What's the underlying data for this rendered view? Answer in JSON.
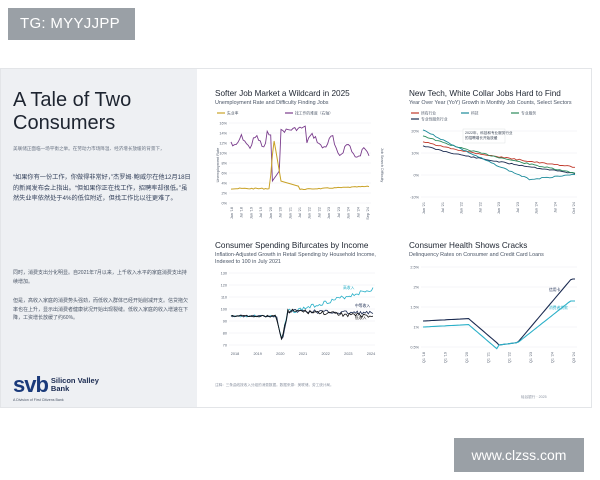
{
  "tag": "TG: MYYJJPP",
  "watermark": "www.clzss.com",
  "slide": {
    "title": "A Tale of Two Consumers",
    "intro": "美联储正面临一场平衡之举。在劳动力市场降温、经济增长放缓的背景下，",
    "quote": "“如果你有一份工作，你做得非常好，”杰罗姆·鲍威尔在他12月18日的新闻发布会上指出。“但如果你正在找工作，招聘率却很低。”虽然失业率依然处于4%的低位附近，但找工作比以往更难了。",
    "body1": "同时，消费支出分化明显。自2021年7月以来，上千收入水平的家庭消费支出持续增加。",
    "body2": "但是，高收入家庭的消费势头强劲，而低收入群体已经开始削减开支。信贷拖欠率也在上升，显示出消费者健康状况开始出现裂缝。低收入家庭的收入增速在下降，工资增长放缓了约60%。",
    "logo_mark": "svb",
    "logo_line1": "Silicon Valley",
    "logo_line2": "Bank",
    "logo_sub": "A Division of First Citizens Bank",
    "footer_left": "注释：三条曲线按收入分组的消费数据。数据来源：美联储，劳工统计局。",
    "footer_right": "硅谷银行 · 2025"
  },
  "charts": {
    "c1": {
      "title": "Softer Job Market a Wildcard in 2025",
      "subtitle": "Unemployment Rate and Difficulty Finding Jobs",
      "legend": [
        "失业率",
        "找工作的难度（右轴）"
      ],
      "ylabel_left": "Unemployment Rate",
      "ylabel_right": "Job Search Difficulty",
      "yticks": [
        "16%",
        "14%",
        "12%",
        "10%",
        "8%",
        "6%",
        "4%",
        "2%",
        "0%"
      ],
      "xticks": [
        "Jan '18",
        "Jul '18",
        "Jan '19",
        "Jul '19",
        "Jan '20",
        "Jul '20",
        "Jan '21",
        "Jul '21",
        "Jan '22",
        "Jul '22",
        "Jan '23",
        "Jul '23",
        "Jan '24",
        "Jul '24",
        "Sep '24"
      ],
      "colors": {
        "unemployment": "#c9a227",
        "difficulty": "#7a3c8c"
      }
    },
    "c2": {
      "title": "New Tech, White Collar Jobs Hard to Find",
      "subtitle": "Year Over Year (YoY) Growth in Monthly Job Counts, Select Sectors",
      "legend": [
        "所有行业",
        "科技",
        "专业服务",
        "专业性服务行业"
      ],
      "annotation": "2022年，科技和专业服务行业的招聘增长开始放缓",
      "yticks": [
        "20%",
        "10%",
        "0%",
        "-10%"
      ],
      "xticks": [
        "Jan '21",
        "Jul '21",
        "Jan '22",
        "Jul '22",
        "Jan '23",
        "Jul '23",
        "Jan '24",
        "Jul '24",
        "Oct '24"
      ],
      "colors": {
        "all": "#c0392b",
        "tech": "#1a8a9a",
        "prof": "#2a8a5a",
        "other": "#1a2a50"
      }
    },
    "c3": {
      "title": "Consumer Spending Bifurcates by Income",
      "subtitle": "Inflation-Adjusted Growth in Retail Spending by Household Income,",
      "subtitle2": "Indexed to 100 in July 2021",
      "legend": [
        "高收入",
        "中等收入",
        "低收入"
      ],
      "yticks": [
        "130",
        "120",
        "110",
        "100",
        "90",
        "80",
        "70"
      ],
      "xticks": [
        "2018",
        "2019",
        "2020",
        "2021",
        "2022",
        "2023",
        "2024"
      ],
      "colors": {
        "high": "#2ab0c8",
        "mid": "#1a2a50",
        "low": "#111111"
      }
    },
    "c4": {
      "title": "Consumer Health Shows Cracks",
      "subtitle": "Delinquency Rates on Consumer and Credit Card Loans",
      "yticks": [
        "2.5%",
        "2%",
        "1.5%",
        "1%",
        "0.5%"
      ],
      "xticks": [
        "Q1 '18",
        "Q1 '19",
        "Q1 '20",
        "Q1 '21",
        "Q1 '22",
        "Q1 '23",
        "Q1 '24",
        "Q3 '24"
      ],
      "label_top": "信用卡",
      "label_bottom": "消费者贷款",
      "colors": {
        "credit": "#1a2a50",
        "consumer": "#2ab0c8"
      }
    }
  }
}
